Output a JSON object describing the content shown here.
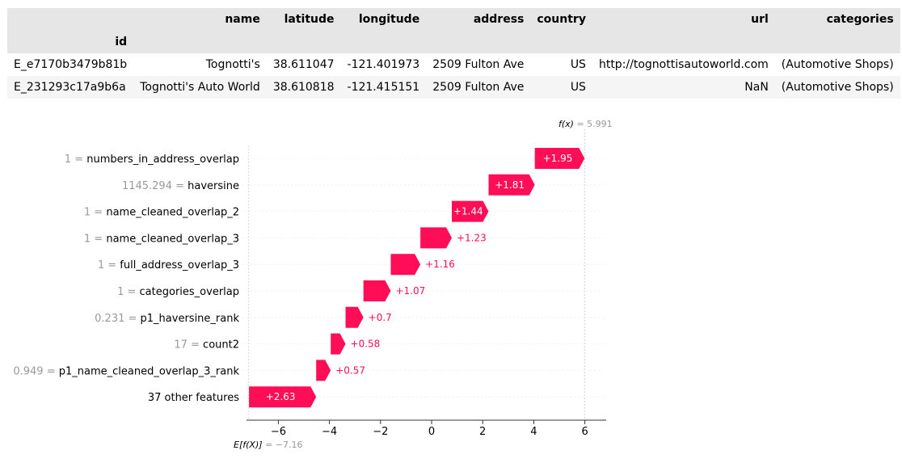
{
  "table": {
    "columns": [
      "",
      "name",
      "latitude",
      "longitude",
      "address",
      "country",
      "url",
      "categories"
    ],
    "index_name": "id",
    "rows": [
      [
        "E_e7170b3479b81b",
        "Tognotti's",
        "38.611047",
        "-121.401973",
        "2509 Fulton Ave",
        "US",
        "http://tognottisautoworld.com",
        "(Automotive Shops)"
      ],
      [
        "E_231293c17a9b6a",
        "Tognotti's Auto World",
        "38.610818",
        "-121.415151",
        "2509 Fulton Ave",
        "US",
        "NaN",
        "(Automotive Shops)"
      ]
    ]
  },
  "chart_data": {
    "type": "waterfall",
    "base_label": "E[f(X)]",
    "base_value": "= −7.16",
    "base_value_num": -7.16,
    "output_label": "f(x)",
    "output_value": "= 5.991",
    "output_value_num": 5.991,
    "xlim": [
      -7.4,
      6.8
    ],
    "xticks": [
      -6,
      -4,
      -2,
      0,
      2,
      4,
      6
    ],
    "xtick_labels": [
      "−6",
      "−4",
      "−2",
      "0",
      "2",
      "4",
      "6"
    ],
    "features": [
      {
        "value": "1",
        "name": "numbers_in_address_overlap",
        "contribution": 1.95,
        "label": "+1.95"
      },
      {
        "value": "1145.294",
        "name": "haversine",
        "contribution": 1.81,
        "label": "+1.81"
      },
      {
        "value": "1",
        "name": "name_cleaned_overlap_2",
        "contribution": 1.44,
        "label": "+1.44"
      },
      {
        "value": "1",
        "name": "name_cleaned_overlap_3",
        "contribution": 1.23,
        "label": "+1.23"
      },
      {
        "value": "1",
        "name": "full_address_overlap_3",
        "contribution": 1.16,
        "label": "+1.16"
      },
      {
        "value": "1",
        "name": "categories_overlap",
        "contribution": 1.07,
        "label": "+1.07"
      },
      {
        "value": "0.231",
        "name": "p1_haversine_rank",
        "contribution": 0.7,
        "label": "+0.7"
      },
      {
        "value": "17",
        "name": "count2",
        "contribution": 0.58,
        "label": "+0.58"
      },
      {
        "value": "0.949",
        "name": "p1_name_cleaned_overlap_3_rank",
        "contribution": 0.57,
        "label": "+0.57"
      },
      {
        "value": "",
        "name": "37 other features",
        "contribution": 2.63,
        "label": "+2.63"
      }
    ],
    "colors": {
      "positive": "#ff0d57",
      "grey_text": "#999999",
      "axis": "#333333",
      "guide": "#cccccc"
    }
  }
}
